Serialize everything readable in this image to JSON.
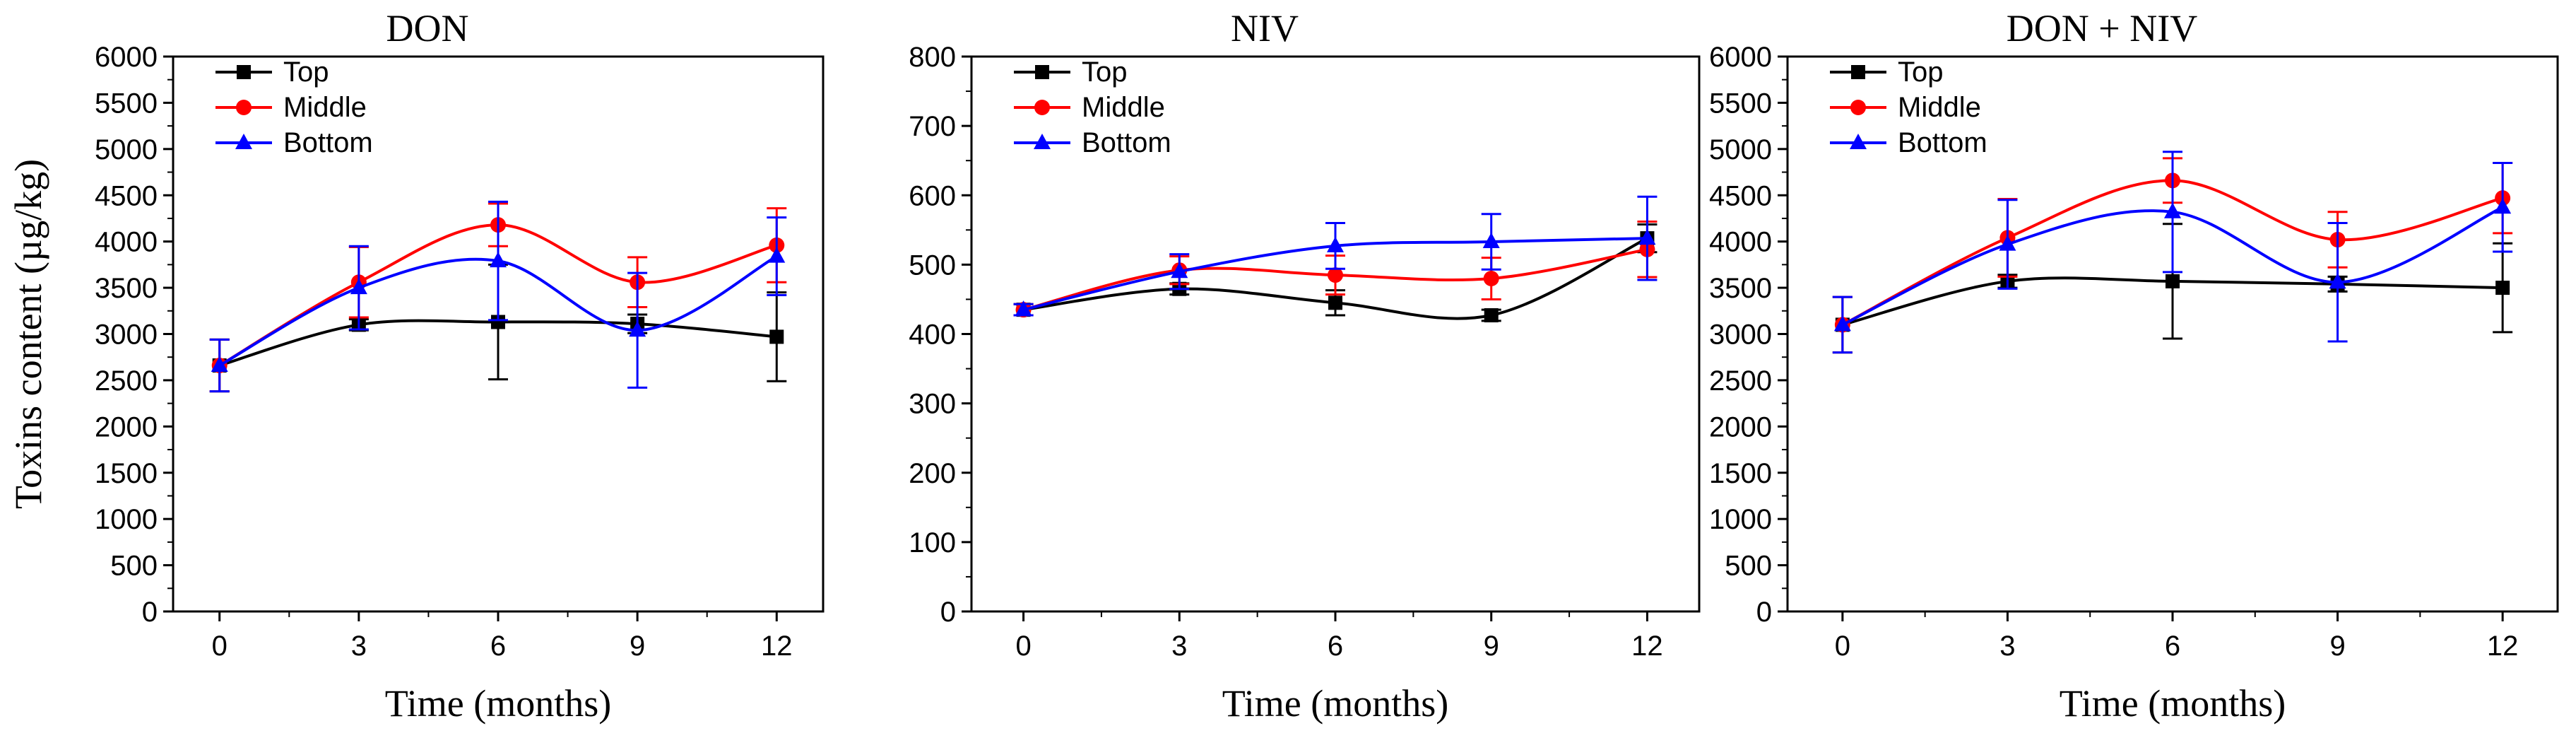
{
  "chart_data": [
    {
      "type": "line",
      "title": "DON",
      "xlabel": "Time (months)",
      "ylabel": "Toxins content (µg/kg)",
      "x": [
        0,
        3,
        6,
        9,
        12
      ],
      "xlim": [
        -1,
        13
      ],
      "ylim": [
        0,
        6000
      ],
      "yticks": [
        0,
        500,
        1000,
        1500,
        2000,
        2500,
        3000,
        3500,
        4000,
        4500,
        5000,
        5500,
        6000
      ],
      "grid": false,
      "legend_position": "top-left",
      "series": [
        {
          "name": "Top",
          "color": "#000000",
          "marker": "square",
          "values": [
            2660,
            3100,
            3130,
            3110,
            2970
          ],
          "errors": [
            280,
            60,
            620,
            100,
            480
          ]
        },
        {
          "name": "Middle",
          "color": "#ff0000",
          "marker": "circle",
          "values": [
            2660,
            3560,
            4180,
            3560,
            3960
          ],
          "errors": [
            280,
            380,
            230,
            270,
            400
          ]
        },
        {
          "name": "Bottom",
          "color": "#0000ff",
          "marker": "triangle",
          "values": [
            2660,
            3500,
            3790,
            3040,
            3840
          ],
          "errors": [
            280,
            450,
            640,
            620,
            420
          ]
        }
      ]
    },
    {
      "type": "line",
      "title": "NIV",
      "xlabel": "Time (months)",
      "ylabel": "",
      "x": [
        0,
        3,
        6,
        9,
        12
      ],
      "xlim": [
        -1,
        13
      ],
      "ylim": [
        0,
        800
      ],
      "yticks": [
        0,
        100,
        200,
        300,
        400,
        500,
        600,
        700,
        800
      ],
      "grid": false,
      "legend_position": "top-left",
      "series": [
        {
          "name": "Top",
          "color": "#000000",
          "marker": "square",
          "values": [
            435,
            465,
            445,
            427,
            538
          ],
          "errors": [
            8,
            8,
            18,
            8,
            20
          ]
        },
        {
          "name": "Middle",
          "color": "#ff0000",
          "marker": "circle",
          "values": [
            435,
            492,
            485,
            480,
            522
          ],
          "errors": [
            8,
            20,
            28,
            30,
            40
          ]
        },
        {
          "name": "Bottom",
          "color": "#0000ff",
          "marker": "triangle",
          "values": [
            435,
            490,
            527,
            533,
            538
          ],
          "errors": [
            8,
            25,
            33,
            40,
            60
          ]
        }
      ]
    },
    {
      "type": "line",
      "title": "DON + NIV",
      "xlabel": "Time (months)",
      "ylabel": "",
      "x": [
        0,
        3,
        6,
        9,
        12
      ],
      "xlim": [
        -1,
        13
      ],
      "ylim": [
        0,
        6000
      ],
      "yticks": [
        0,
        500,
        1000,
        1500,
        2000,
        2500,
        3000,
        3500,
        4000,
        4500,
        5000,
        5500,
        6000
      ],
      "grid": false,
      "legend_position": "top-left",
      "series": [
        {
          "name": "Top",
          "color": "#000000",
          "marker": "square",
          "values": [
            3100,
            3570,
            3570,
            3540,
            3500
          ],
          "errors": [
            300,
            70,
            620,
            80,
            480
          ]
        },
        {
          "name": "Middle",
          "color": "#ff0000",
          "marker": "circle",
          "values": [
            3100,
            4040,
            4660,
            4020,
            4470
          ],
          "errors": [
            300,
            420,
            240,
            300,
            380
          ]
        },
        {
          "name": "Bottom",
          "color": "#0000ff",
          "marker": "triangle",
          "values": [
            3100,
            3970,
            4320,
            3560,
            4370
          ],
          "errors": [
            300,
            480,
            650,
            640,
            480
          ]
        }
      ]
    }
  ]
}
